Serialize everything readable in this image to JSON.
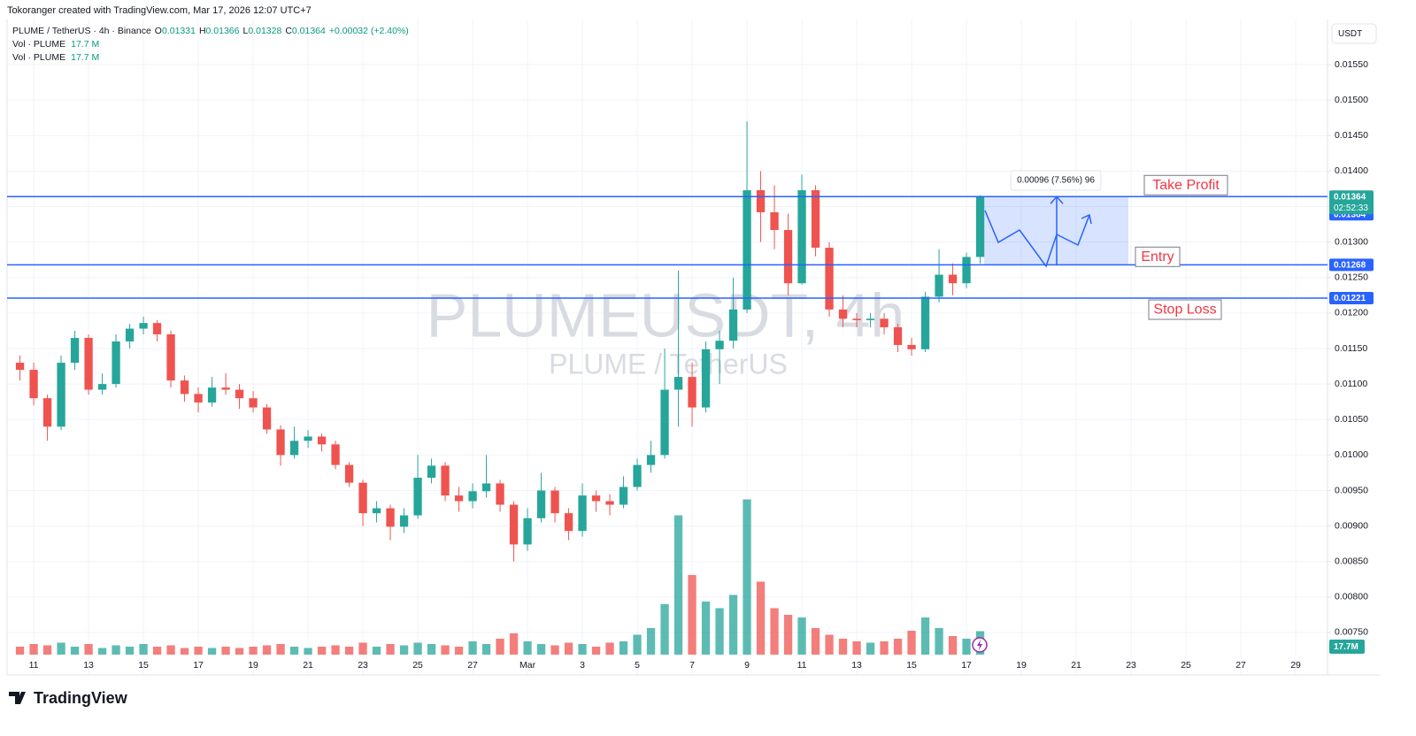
{
  "chart_data": {
    "type": "candlestick",
    "attribution": "Tokoranger created with TradingView.com, Mar 17, 2026 12:07 UTC+7",
    "legend": {
      "symbol": "PLUME / TetherUS · 4h · Binance",
      "open_label": "O",
      "open": 0.01331,
      "high_label": "H",
      "high": 0.01366,
      "low_label": "L",
      "low": 0.01328,
      "close_label": "C",
      "close": 0.01364,
      "change": "+0.00032 (+2.40%)"
    },
    "volume_legends": [
      {
        "name": "Vol · PLUME",
        "value": 17.7,
        "value_label": "17.7 M"
      },
      {
        "name": "Vol · PLUME",
        "value": 17.7,
        "value_label": "17.7 M"
      }
    ],
    "watermark": {
      "title": "PLUMEUSDT, 4h",
      "subtitle": "PLUME / TetherUS"
    },
    "currency": "USDT",
    "logo": "TradingView",
    "up_color": "#26a69a",
    "down_color": "#ef5350",
    "level_color": "#2962ff",
    "x": [
      10.5,
      11,
      11.5,
      12,
      12.5,
      13,
      13.5,
      14,
      14.5,
      15,
      15.5,
      16,
      16.5,
      17,
      17.5,
      18,
      18.5,
      19,
      19.5,
      20,
      20.5,
      21,
      21.5,
      22,
      22.5,
      23,
      23.5,
      24,
      24.5,
      25,
      25.5,
      26,
      26.5,
      27,
      27.5,
      28,
      28.5,
      29,
      29.5,
      30,
      30.5,
      31,
      31.5,
      32,
      32.5,
      33,
      33.5,
      34,
      34.5,
      35,
      35.5,
      36,
      36.5,
      37,
      37.5,
      38,
      38.5,
      39,
      39.5,
      40,
      40.5,
      41,
      41.5,
      42,
      42.5,
      43,
      43.5,
      44,
      44.5,
      45,
      45.5
    ],
    "ohlc": [
      [
        0.0113,
        0.0114,
        0.01105,
        0.0112
      ],
      [
        0.0112,
        0.0113,
        0.0107,
        0.0108
      ],
      [
        0.0108,
        0.01085,
        0.0102,
        0.0104
      ],
      [
        0.0104,
        0.0114,
        0.01035,
        0.0113
      ],
      [
        0.0113,
        0.01175,
        0.0112,
        0.01165
      ],
      [
        0.01165,
        0.0117,
        0.01085,
        0.01092
      ],
      [
        0.01092,
        0.01115,
        0.01085,
        0.011
      ],
      [
        0.011,
        0.0117,
        0.01095,
        0.0116
      ],
      [
        0.0116,
        0.01185,
        0.0115,
        0.01178
      ],
      [
        0.01178,
        0.01195,
        0.0117,
        0.01186
      ],
      [
        0.01186,
        0.0119,
        0.0116,
        0.0117
      ],
      [
        0.0117,
        0.01175,
        0.01095,
        0.01105
      ],
      [
        0.01105,
        0.01112,
        0.01075,
        0.01086
      ],
      [
        0.01086,
        0.01095,
        0.0106,
        0.01074
      ],
      [
        0.01074,
        0.0111,
        0.01068,
        0.01095
      ],
      [
        0.01095,
        0.01115,
        0.01085,
        0.01092
      ],
      [
        0.01092,
        0.011,
        0.01065,
        0.0108
      ],
      [
        0.0108,
        0.0109,
        0.0106,
        0.01067
      ],
      [
        0.01067,
        0.01072,
        0.0103,
        0.01036
      ],
      [
        0.01036,
        0.01042,
        0.00985,
        0.01
      ],
      [
        0.01,
        0.0104,
        0.00995,
        0.0102
      ],
      [
        0.0102,
        0.01035,
        0.0101,
        0.01026
      ],
      [
        0.01026,
        0.0103,
        0.01005,
        0.01015
      ],
      [
        0.01015,
        0.0102,
        0.0098,
        0.00986
      ],
      [
        0.00986,
        0.0099,
        0.00955,
        0.00961
      ],
      [
        0.00961,
        0.00965,
        0.009,
        0.00918
      ],
      [
        0.00918,
        0.00935,
        0.00905,
        0.00925
      ],
      [
        0.00925,
        0.0093,
        0.0088,
        0.00899
      ],
      [
        0.00899,
        0.00925,
        0.0089,
        0.00915
      ],
      [
        0.00915,
        0.01,
        0.0091,
        0.00968
      ],
      [
        0.00968,
        0.00995,
        0.0096,
        0.00985
      ],
      [
        0.00985,
        0.0099,
        0.00935,
        0.00943
      ],
      [
        0.00943,
        0.00955,
        0.0092,
        0.00935
      ],
      [
        0.00935,
        0.0096,
        0.00925,
        0.00949
      ],
      [
        0.00949,
        0.01,
        0.0094,
        0.0096
      ],
      [
        0.0096,
        0.00965,
        0.0092,
        0.0093
      ],
      [
        0.0093,
        0.00935,
        0.0085,
        0.00874
      ],
      [
        0.00874,
        0.00925,
        0.00865,
        0.00911
      ],
      [
        0.00911,
        0.00975,
        0.00905,
        0.0095
      ],
      [
        0.0095,
        0.00955,
        0.00905,
        0.00918
      ],
      [
        0.00918,
        0.00925,
        0.0088,
        0.00893
      ],
      [
        0.00893,
        0.0096,
        0.00885,
        0.00943
      ],
      [
        0.00943,
        0.0095,
        0.0092,
        0.00935
      ],
      [
        0.00935,
        0.00945,
        0.00915,
        0.0093
      ],
      [
        0.0093,
        0.0097,
        0.00925,
        0.00955
      ],
      [
        0.00955,
        0.00995,
        0.0095,
        0.00986
      ],
      [
        0.00986,
        0.0102,
        0.00975,
        0.01
      ],
      [
        0.01,
        0.0115,
        0.00995,
        0.01092
      ],
      [
        0.01092,
        0.0126,
        0.0104,
        0.0111
      ],
      [
        0.0111,
        0.0113,
        0.0104,
        0.01067
      ],
      [
        0.01067,
        0.0116,
        0.0106,
        0.01149
      ],
      [
        0.01149,
        0.01175,
        0.011,
        0.01161
      ],
      [
        0.01161,
        0.0125,
        0.0115,
        0.01205
      ],
      [
        0.01205,
        0.0147,
        0.012,
        0.01373
      ],
      [
        0.01373,
        0.014,
        0.013,
        0.01342
      ],
      [
        0.01342,
        0.0138,
        0.0129,
        0.01317
      ],
      [
        0.01317,
        0.0134,
        0.01225,
        0.01242
      ],
      [
        0.01242,
        0.01395,
        0.0124,
        0.01373
      ],
      [
        0.01373,
        0.0138,
        0.0128,
        0.01292
      ],
      [
        0.01292,
        0.013,
        0.01195,
        0.01205
      ],
      [
        0.01205,
        0.01225,
        0.0118,
        0.01192
      ],
      [
        0.01192,
        0.012,
        0.0118,
        0.0119
      ],
      [
        0.0119,
        0.012,
        0.0118,
        0.01192
      ],
      [
        0.01192,
        0.012,
        0.0117,
        0.0118
      ],
      [
        0.0118,
        0.01185,
        0.01145,
        0.01155
      ],
      [
        0.01155,
        0.01165,
        0.0114,
        0.01149
      ],
      [
        0.01149,
        0.0123,
        0.01145,
        0.01223
      ],
      [
        0.01223,
        0.0129,
        0.01215,
        0.01254
      ],
      [
        0.01254,
        0.0127,
        0.01225,
        0.01242
      ],
      [
        0.01242,
        0.01285,
        0.01235,
        0.01279
      ],
      [
        0.01279,
        0.01366,
        0.0127,
        0.01364
      ]
    ],
    "volume": [
      6,
      8,
      7,
      9,
      6,
      8,
      5,
      7,
      6,
      8,
      6,
      7,
      5,
      6,
      5,
      6,
      5,
      6,
      7,
      8,
      6,
      5,
      6,
      7,
      6,
      9,
      6,
      8,
      7,
      9,
      8,
      7,
      6,
      10,
      8,
      12,
      16,
      10,
      8,
      7,
      9,
      8,
      6,
      9,
      10,
      15,
      20,
      38,
      105,
      60,
      40,
      35,
      45,
      117,
      55,
      35,
      30,
      28,
      20,
      15,
      12,
      10,
      9,
      10,
      12,
      18,
      28,
      20,
      14,
      12,
      17.7
    ],
    "volume_last_label": "17.7M",
    "volume_lim": [
      0,
      120
    ],
    "xlim": [
      10.03,
      58.16
    ],
    "xticks": [
      11,
      13,
      15,
      17,
      19,
      21,
      23,
      25,
      27,
      {
        "value": 29,
        "label": "Mar"
      },
      {
        "value": 31,
        "label": "3"
      },
      {
        "value": 33,
        "label": "5"
      },
      {
        "value": 35,
        "label": "7"
      },
      {
        "value": 37,
        "label": "9"
      },
      {
        "value": 39,
        "label": "11"
      },
      {
        "value": 41,
        "label": "13"
      },
      {
        "value": 43,
        "label": "15"
      },
      {
        "value": 45,
        "label": "17"
      },
      {
        "value": 47,
        "label": "19"
      },
      {
        "value": 49,
        "label": "21"
      },
      {
        "value": 51,
        "label": "23"
      },
      {
        "value": 53,
        "label": "25"
      },
      {
        "value": 55,
        "label": "27"
      },
      {
        "value": 57,
        "label": "29"
      }
    ],
    "ylim": [
      0.007188,
      0.016136
    ],
    "yticks": [
      {
        "value": 0.0075,
        "label": "0.00750"
      },
      {
        "value": 0.008,
        "label": "0.00800"
      },
      {
        "value": 0.0085,
        "label": "0.00850"
      },
      {
        "value": 0.009,
        "label": "0.00900"
      },
      {
        "value": 0.0095,
        "label": "0.00950"
      },
      {
        "value": 0.01,
        "label": "0.01000"
      },
      {
        "value": 0.0105,
        "label": "0.01050"
      },
      {
        "value": 0.011,
        "label": "0.01100"
      },
      {
        "value": 0.0115,
        "label": "0.01150"
      },
      {
        "value": 0.012,
        "label": "0.01200"
      },
      {
        "value": 0.0125,
        "label": "0.01250"
      },
      {
        "value": 0.013,
        "label": "0.01300"
      },
      {
        "value": 0.0135,
        "label": "0.01350"
      },
      {
        "value": 0.014,
        "label": "0.01400"
      },
      {
        "value": 0.0145,
        "label": "0.01450"
      },
      {
        "value": 0.015,
        "label": "0.01500"
      },
      {
        "value": 0.0155,
        "label": "0.01550"
      }
    ],
    "grid": true,
    "levels": [
      {
        "name": "Take Profit",
        "value": 0.01364
      },
      {
        "name": "Entry",
        "value": 0.01268
      },
      {
        "name": "Stop Loss",
        "value": 0.01221
      }
    ],
    "last_price": 0.01364,
    "countdown": "02:52:33",
    "measure_label": "0.00096 (7.56%) 96"
  }
}
